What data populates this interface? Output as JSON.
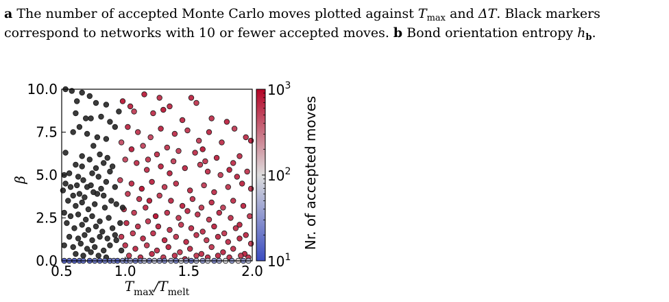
{
  "caption": {
    "a_label": "a",
    "a_pre": "The number of accepted Monte Carlo moves plotted against ",
    "tmax": "T",
    "tmax_sub": "max",
    "and": " and ",
    "delta_t": "ΔT",
    "a_post": ". Black markers correspond to networks with 10 or fewer accepted moves. ",
    "b_label": "b",
    "b_text": "Bond orientation entropy ",
    "hb": "h",
    "hb_sub": "b",
    "period": "."
  },
  "chart_data": {
    "type": "scatter",
    "title": "",
    "xlabel": "T_max/T_melt",
    "xlabel_main": "T",
    "xlabel_sub1": "max",
    "xlabel_slash": "/T",
    "xlabel_sub2": "melt",
    "ylabel": "β",
    "xlim": [
      0.5,
      2.0
    ],
    "ylim": [
      0.0,
      10.0
    ],
    "xticks": [
      "0.5",
      "1.0",
      "1.5",
      "2.0"
    ],
    "yticks": [
      "0.0",
      "2.5",
      "5.0",
      "7.5",
      "10.0"
    ],
    "colorbar": {
      "label": "Nr. of accepted moves",
      "scale": "log",
      "range": [
        10,
        1000
      ],
      "ticks": [
        {
          "base": "10",
          "exp": "1"
        },
        {
          "base": "10",
          "exp": "2"
        },
        {
          "base": "10",
          "exp": "3"
        }
      ],
      "colormap_low": "#3b4cc0",
      "colormap_mid": "#dddddd",
      "colormap_high": "#b40426"
    },
    "black_marker_color": "#262626",
    "points_black": [
      [
        0.53,
        10.0
      ],
      [
        0.58,
        9.9
      ],
      [
        0.66,
        9.8
      ],
      [
        0.72,
        9.6
      ],
      [
        0.62,
        9.3
      ],
      [
        0.77,
        9.2
      ],
      [
        0.85,
        9.1
      ],
      [
        0.61,
        8.6
      ],
      [
        0.69,
        8.3
      ],
      [
        0.73,
        8.3
      ],
      [
        0.81,
        8.4
      ],
      [
        0.88,
        8.1
      ],
      [
        0.95,
        8.7
      ],
      [
        0.64,
        7.8
      ],
      [
        0.59,
        7.5
      ],
      [
        0.7,
        7.4
      ],
      [
        0.78,
        7.2
      ],
      [
        0.85,
        7.1
      ],
      [
        0.92,
        7.8
      ],
      [
        0.75,
        6.7
      ],
      [
        0.53,
        6.3
      ],
      [
        0.66,
        6.1
      ],
      [
        0.72,
        5.9
      ],
      [
        0.8,
        6.2
      ],
      [
        0.86,
        6.0
      ],
      [
        0.61,
        5.6
      ],
      [
        0.66,
        5.5
      ],
      [
        0.77,
        5.4
      ],
      [
        0.83,
        5.7
      ],
      [
        0.9,
        5.5
      ],
      [
        0.52,
        5.0
      ],
      [
        0.56,
        5.1
      ],
      [
        0.63,
        4.9
      ],
      [
        0.67,
        4.7
      ],
      [
        0.74,
        5.1
      ],
      [
        0.79,
        4.9
      ],
      [
        0.88,
        5.2
      ],
      [
        0.53,
        4.5
      ],
      [
        0.57,
        4.3
      ],
      [
        0.62,
        4.4
      ],
      [
        0.7,
        4.3
      ],
      [
        0.73,
        4.4
      ],
      [
        0.81,
        4.2
      ],
      [
        0.85,
        4.6
      ],
      [
        0.92,
        4.3
      ],
      [
        0.51,
        4.1
      ],
      [
        0.59,
        3.8
      ],
      [
        0.64,
        3.9
      ],
      [
        0.68,
        3.7
      ],
      [
        0.75,
        4.0
      ],
      [
        0.78,
        3.9
      ],
      [
        0.83,
        3.8
      ],
      [
        0.89,
        3.5
      ],
      [
        0.55,
        3.5
      ],
      [
        0.61,
        3.2
      ],
      [
        0.66,
        3.4
      ],
      [
        0.71,
        3.0
      ],
      [
        0.76,
        3.3
      ],
      [
        0.84,
        3.1
      ],
      [
        0.93,
        3.3
      ],
      [
        0.52,
        2.8
      ],
      [
        0.57,
        2.6
      ],
      [
        0.63,
        2.7
      ],
      [
        0.69,
        2.4
      ],
      [
        0.74,
        2.6
      ],
      [
        0.8,
        2.3
      ],
      [
        0.87,
        2.5
      ],
      [
        0.54,
        2.2
      ],
      [
        0.6,
        1.9
      ],
      [
        0.66,
        2.1
      ],
      [
        0.71,
        1.8
      ],
      [
        0.77,
        2.0
      ],
      [
        0.82,
        1.7
      ],
      [
        0.9,
        1.9
      ],
      [
        0.56,
        1.4
      ],
      [
        0.63,
        1.3
      ],
      [
        0.68,
        1.5
      ],
      [
        0.74,
        1.2
      ],
      [
        0.8,
        1.4
      ],
      [
        0.86,
        1.3
      ],
      [
        0.93,
        1.2
      ],
      [
        0.52,
        0.9
      ],
      [
        0.59,
        0.8
      ],
      [
        0.65,
        1.0
      ],
      [
        0.7,
        0.7
      ],
      [
        0.76,
        0.8
      ],
      [
        0.83,
        0.6
      ],
      [
        0.88,
        0.9
      ],
      [
        0.61,
        0.4
      ],
      [
        0.67,
        0.3
      ],
      [
        0.73,
        0.5
      ],
      [
        0.79,
        0.3
      ],
      [
        0.85,
        0.2
      ],
      [
        0.97,
        0.6
      ],
      [
        0.92,
        1.5
      ],
      [
        0.96,
        2.2
      ],
      [
        0.98,
        3.1
      ]
    ],
    "points_colored": [
      [
        0.98,
        9.3,
        900
      ],
      [
        1.04,
        9.0,
        800
      ],
      [
        1.15,
        9.7,
        850
      ],
      [
        1.27,
        9.5,
        700
      ],
      [
        1.35,
        9.0,
        750
      ],
      [
        1.52,
        9.5,
        800
      ],
      [
        1.56,
        9.2,
        650
      ],
      [
        1.07,
        8.7,
        600
      ],
      [
        1.22,
        8.6,
        700
      ],
      [
        1.3,
        8.8,
        900
      ],
      [
        1.45,
        8.2,
        750
      ],
      [
        1.68,
        8.3,
        700
      ],
      [
        1.8,
        8.1,
        800
      ],
      [
        1.86,
        7.7,
        600
      ],
      [
        1.95,
        7.2,
        700
      ],
      [
        1.99,
        7.0,
        850
      ],
      [
        1.02,
        7.8,
        750
      ],
      [
        1.1,
        7.5,
        650
      ],
      [
        1.2,
        7.2,
        550
      ],
      [
        1.28,
        7.7,
        800
      ],
      [
        1.39,
        7.4,
        700
      ],
      [
        1.49,
        7.6,
        650
      ],
      [
        1.58,
        7.0,
        600
      ],
      [
        1.66,
        7.5,
        750
      ],
      [
        1.76,
        6.9,
        700
      ],
      [
        0.97,
        6.9,
        500
      ],
      [
        1.05,
        6.5,
        850
      ],
      [
        1.14,
        6.7,
        550
      ],
      [
        1.25,
        6.2,
        700
      ],
      [
        1.33,
        6.6,
        650
      ],
      [
        1.42,
        6.4,
        600
      ],
      [
        1.55,
        6.3,
        700
      ],
      [
        1.61,
        6.5,
        900
      ],
      [
        1.72,
        6.0,
        800
      ],
      [
        1.9,
        6.1,
        700
      ],
      [
        1.0,
        5.9,
        550
      ],
      [
        1.09,
        5.7,
        700
      ],
      [
        1.18,
        5.9,
        650
      ],
      [
        1.28,
        5.5,
        800
      ],
      [
        1.38,
        5.8,
        600
      ],
      [
        1.47,
        5.4,
        750
      ],
      [
        1.59,
        5.6,
        650
      ],
      [
        1.65,
        5.2,
        700
      ],
      [
        1.75,
        5.0,
        600
      ],
      [
        1.82,
        5.3,
        850
      ],
      [
        1.88,
        4.9,
        750
      ],
      [
        1.96,
        5.2,
        650
      ],
      [
        0.96,
        4.7,
        600
      ],
      [
        1.05,
        4.5,
        750
      ],
      [
        1.13,
        4.2,
        1000
      ],
      [
        1.21,
        4.6,
        800
      ],
      [
        1.31,
        4.3,
        650
      ],
      [
        1.4,
        4.5,
        700
      ],
      [
        1.51,
        4.1,
        750
      ],
      [
        1.62,
        4.4,
        600
      ],
      [
        1.7,
        4.0,
        700
      ],
      [
        1.81,
        4.3,
        650
      ],
      [
        1.92,
        4.5,
        800
      ],
      [
        1.99,
        4.2,
        700
      ],
      [
        1.02,
        3.9,
        650
      ],
      [
        1.11,
        3.6,
        700
      ],
      [
        1.19,
        3.5,
        900
      ],
      [
        1.27,
        3.8,
        650
      ],
      [
        1.36,
        3.5,
        750
      ],
      [
        1.45,
        3.2,
        800
      ],
      [
        1.53,
        3.6,
        700
      ],
      [
        1.6,
        3.1,
        650
      ],
      [
        1.68,
        3.4,
        750
      ],
      [
        1.77,
        3.1,
        600
      ],
      [
        1.85,
        3.5,
        700
      ],
      [
        1.93,
        3.2,
        800
      ],
      [
        0.99,
        3.0,
        700
      ],
      [
        1.07,
        2.8,
        650
      ],
      [
        1.16,
        3.1,
        750
      ],
      [
        1.24,
        2.6,
        1000
      ],
      [
        1.33,
        2.8,
        700
      ],
      [
        1.42,
        2.5,
        650
      ],
      [
        1.49,
        2.9,
        750
      ],
      [
        1.57,
        2.7,
        700
      ],
      [
        1.66,
        2.4,
        650
      ],
      [
        1.74,
        2.8,
        750
      ],
      [
        1.83,
        2.5,
        700
      ],
      [
        1.9,
        2.1,
        800
      ],
      [
        1.98,
        2.6,
        650
      ],
      [
        1.01,
        2.2,
        750
      ],
      [
        1.1,
        2.0,
        700
      ],
      [
        1.18,
        2.3,
        650
      ],
      [
        1.26,
        2.0,
        800
      ],
      [
        1.35,
        1.8,
        700
      ],
      [
        1.44,
        2.1,
        650
      ],
      [
        1.52,
        1.9,
        750
      ],
      [
        1.61,
        1.7,
        700
      ],
      [
        1.7,
        2.0,
        800
      ],
      [
        1.78,
        1.6,
        650
      ],
      [
        1.87,
        1.9,
        700
      ],
      [
        1.95,
        1.5,
        750
      ],
      [
        0.97,
        1.4,
        700
      ],
      [
        1.06,
        1.6,
        650
      ],
      [
        1.14,
        1.3,
        750
      ],
      [
        1.22,
        1.6,
        700
      ],
      [
        1.31,
        1.2,
        800
      ],
      [
        1.4,
        1.4,
        650
      ],
      [
        1.48,
        1.1,
        750
      ],
      [
        1.56,
        1.5,
        700
      ],
      [
        1.64,
        1.2,
        650
      ],
      [
        1.73,
        1.4,
        750
      ],
      [
        1.81,
        1.1,
        700
      ],
      [
        1.9,
        1.3,
        800
      ],
      [
        1.99,
        1.0,
        650
      ],
      [
        1.0,
        0.9,
        700
      ],
      [
        1.08,
        0.7,
        750
      ],
      [
        1.17,
        0.9,
        650
      ],
      [
        1.25,
        0.6,
        700
      ],
      [
        1.34,
        0.8,
        800
      ],
      [
        1.43,
        0.5,
        650
      ],
      [
        1.51,
        0.7,
        750
      ],
      [
        1.6,
        0.4,
        700
      ],
      [
        1.68,
        0.8,
        650
      ],
      [
        1.77,
        0.5,
        750
      ],
      [
        1.85,
        0.7,
        700
      ],
      [
        1.94,
        0.4,
        800
      ],
      [
        1.03,
        0.3,
        650
      ],
      [
        1.12,
        0.2,
        700
      ],
      [
        1.21,
        0.4,
        750
      ],
      [
        1.3,
        0.2,
        650
      ],
      [
        1.39,
        0.3,
        700
      ],
      [
        1.47,
        0.1,
        750
      ],
      [
        1.56,
        0.3,
        650
      ],
      [
        1.65,
        0.2,
        700
      ],
      [
        1.73,
        0.3,
        750
      ],
      [
        1.82,
        0.2,
        700
      ],
      [
        1.91,
        0.3,
        650
      ],
      [
        1.97,
        0.2,
        700
      ],
      [
        1.35,
        5.1,
        800
      ],
      [
        1.17,
        5.3,
        700
      ],
      [
        1.63,
        5.8,
        650
      ],
      [
        1.85,
        5.7,
        700
      ]
    ],
    "points_axis": [
      [
        0.52,
        0.0,
        12
      ],
      [
        0.56,
        0.0,
        14
      ],
      [
        0.6,
        0.0,
        11
      ],
      [
        0.64,
        0.0,
        13
      ],
      [
        0.67,
        0.0,
        15
      ],
      [
        0.72,
        0.0,
        12
      ],
      [
        0.76,
        0.0,
        18
      ],
      [
        0.8,
        0.0,
        14
      ],
      [
        0.84,
        0.0,
        20
      ],
      [
        0.88,
        0.0,
        16
      ],
      [
        0.91,
        0.0,
        25
      ],
      [
        0.94,
        0.0,
        13
      ],
      [
        0.98,
        0.0,
        30
      ],
      [
        1.01,
        0.0,
        22
      ],
      [
        1.04,
        0.0,
        40
      ],
      [
        1.08,
        0.0,
        19
      ],
      [
        1.12,
        0.0,
        28
      ],
      [
        1.15,
        0.0,
        55
      ],
      [
        1.19,
        0.0,
        24
      ],
      [
        1.23,
        0.0,
        60
      ],
      [
        1.27,
        0.0,
        33
      ],
      [
        1.31,
        0.0,
        26
      ],
      [
        1.36,
        0.0,
        45
      ],
      [
        1.4,
        0.0,
        21
      ],
      [
        1.44,
        0.0,
        80
      ],
      [
        1.48,
        0.0,
        35
      ],
      [
        1.52,
        0.0,
        18
      ],
      [
        1.56,
        0.0,
        50
      ],
      [
        1.61,
        0.0,
        29
      ],
      [
        1.65,
        0.0,
        70
      ],
      [
        1.7,
        0.0,
        23
      ],
      [
        1.74,
        0.0,
        40
      ],
      [
        1.79,
        0.0,
        90
      ],
      [
        1.84,
        0.0,
        31
      ],
      [
        1.89,
        0.0,
        120
      ],
      [
        1.93,
        0.0,
        27
      ],
      [
        1.97,
        0.0,
        60
      ]
    ]
  }
}
